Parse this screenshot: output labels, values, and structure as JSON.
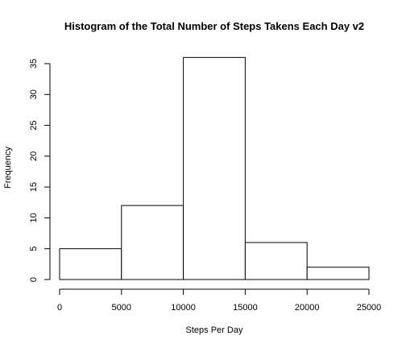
{
  "chart_data": {
    "type": "bar",
    "title": "Histogram of the Total Number of Steps Takens Each Day v2",
    "xlabel": "Steps Per Day",
    "ylabel": "Frequency",
    "bins": [
      {
        "x0": 0,
        "x1": 5000,
        "value": 5
      },
      {
        "x0": 5000,
        "x1": 10000,
        "value": 12
      },
      {
        "x0": 10000,
        "x1": 15000,
        "value": 36
      },
      {
        "x0": 15000,
        "x1": 20000,
        "value": 6
      },
      {
        "x0": 20000,
        "x1": 25000,
        "value": 2
      }
    ],
    "xlim": [
      0,
      25000
    ],
    "ylim": [
      0,
      36
    ],
    "x_ticks": [
      0,
      5000,
      10000,
      15000,
      20000,
      25000
    ],
    "y_ticks": [
      0,
      5,
      10,
      15,
      20,
      25,
      30,
      35
    ],
    "grid": false,
    "colors": {
      "bar_fill": "#ffffff",
      "bar_stroke": "#000000"
    }
  }
}
